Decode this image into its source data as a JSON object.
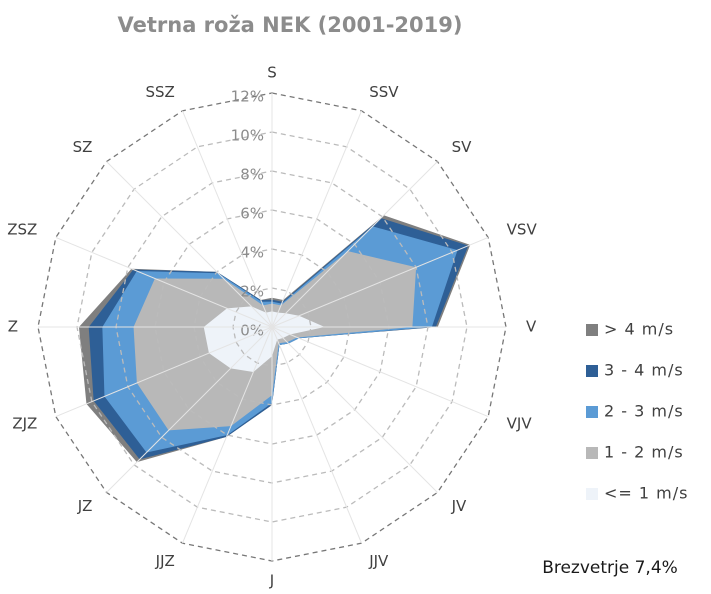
{
  "chart_data": {
    "type": "radar",
    "title": "Vetrna roža NEK (2001-2019)",
    "annotation": "Brezvetrje 7,4%",
    "stacked": true,
    "categories": [
      "S",
      "SSV",
      "SV",
      "VSV",
      "V",
      "VJV",
      "JV",
      "JJV",
      "J",
      "JJZ",
      "JZ",
      "ZJZ",
      "Z",
      "ZSZ",
      "SZ",
      "SSZ"
    ],
    "series": [
      {
        "name": "<= 1 m/s",
        "color": "#eef3f9",
        "values": [
          0.8,
          0.8,
          1.0,
          1.5,
          2.7,
          1.0,
          0.8,
          0.7,
          1.5,
          2.5,
          3.0,
          3.5,
          3.5,
          2.5,
          1.5,
          0.8
        ]
      },
      {
        "name": "1 - 2 m/s",
        "color": "#b8b8b8",
        "values": [
          0.4,
          0.4,
          4.5,
          6.5,
          4.5,
          0.4,
          0.3,
          0.2,
          2.0,
          3.0,
          4.5,
          4.0,
          3.6,
          4.0,
          2.0,
          0.4
        ]
      },
      {
        "name": "2 - 3 m/s",
        "color": "#5b9bd5",
        "values": [
          0.1,
          0.1,
          1.8,
          2.3,
          1.0,
          0.1,
          0.1,
          0.1,
          0.4,
          0.5,
          1.6,
          1.8,
          1.6,
          1.0,
          0.4,
          0.2
        ]
      },
      {
        "name": "3 - 4 m/s",
        "color": "#2e5f96",
        "values": [
          0.1,
          0.1,
          0.6,
          0.6,
          0.2,
          0,
          0,
          0,
          0.1,
          0.1,
          0.5,
          0.6,
          0.7,
          0.2,
          0.1,
          0.1
        ]
      },
      {
        "name": "> 4 m/s",
        "color": "#7f7f7f",
        "values": [
          0.1,
          0.1,
          0.2,
          0.1,
          0.1,
          0,
          0,
          0,
          0,
          0,
          0.2,
          0.4,
          0.5,
          0.1,
          0,
          0
        ]
      }
    ],
    "rlim": [
      0,
      12
    ],
    "rticks": [
      {
        "value": 0,
        "label": "0%"
      },
      {
        "value": 2,
        "label": "2%"
      },
      {
        "value": 4,
        "label": "4%"
      },
      {
        "value": 6,
        "label": "6%"
      },
      {
        "value": 8,
        "label": "8%"
      },
      {
        "value": 10,
        "label": "10%"
      },
      {
        "value": 12,
        "label": "12%"
      }
    ],
    "grid": true,
    "legend": "right"
  }
}
